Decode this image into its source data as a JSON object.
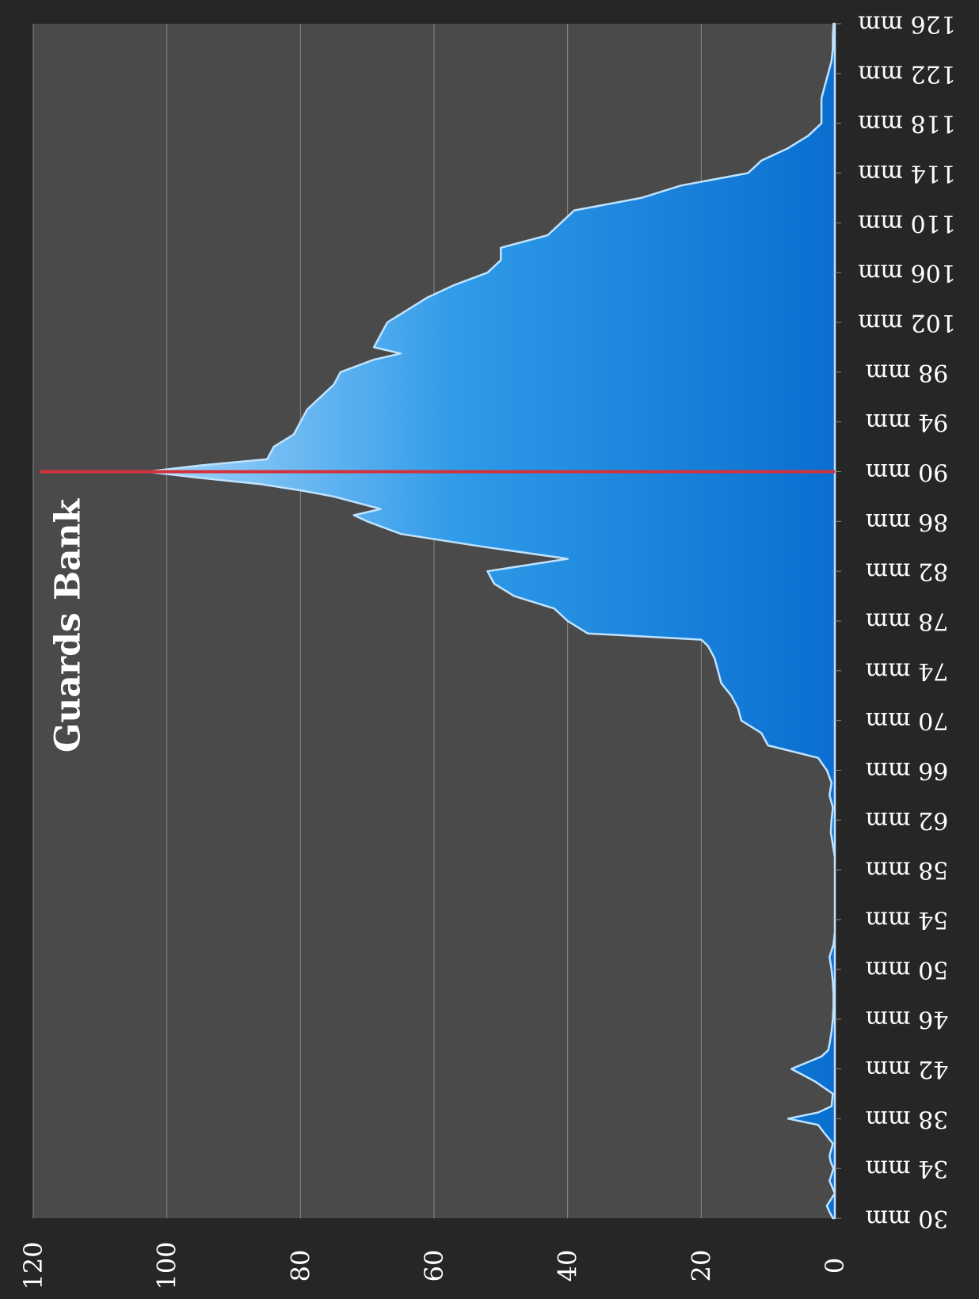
{
  "chart_data": {
    "type": "area",
    "title": "Guards Bank",
    "xlabel": "",
    "ylabel": "",
    "ylim": [
      0,
      120
    ],
    "y_ticks": [
      "0",
      "20",
      "40",
      "60",
      "80",
      "100",
      "120"
    ],
    "x_ticks": [
      "30 mm",
      "34 mm",
      "38 mm",
      "42 mm",
      "46 mm",
      "50 mm",
      "54 mm",
      "58 mm",
      "62 mm",
      "66 mm",
      "70 mm",
      "74 mm",
      "78 mm",
      "82 mm",
      "86 mm",
      "90 mm",
      "94 mm",
      "98 mm",
      "102 mm",
      "106 mm",
      "110 mm",
      "114 mm",
      "118 mm",
      "122 mm",
      "126 mm"
    ],
    "xlim": [
      30,
      126
    ],
    "marker_x": 90,
    "series": [
      {
        "x": [
          30,
          30.5,
          31,
          31.5,
          32,
          33,
          34,
          34.5,
          35,
          36,
          37,
          37.5,
          38,
          38.5,
          39,
          40,
          41,
          42,
          43,
          43.5,
          44,
          45,
          46,
          47,
          48,
          49,
          50,
          51,
          52,
          53,
          54,
          55,
          56,
          57,
          58,
          59,
          60,
          61,
          62,
          63,
          64,
          65,
          66,
          67,
          68,
          69,
          70,
          71,
          72,
          73,
          74,
          75,
          76,
          76.5,
          77,
          78,
          79,
          80,
          81,
          82,
          83,
          84,
          85,
          86,
          86.5,
          87,
          88,
          88.5,
          89,
          89.5,
          90,
          90.5,
          91,
          92,
          93,
          94,
          95,
          96,
          97,
          98,
          99,
          99.5,
          100,
          101,
          102,
          103,
          104,
          105,
          106,
          107,
          108,
          109,
          110,
          111,
          112,
          113,
          114,
          115,
          116,
          117,
          118,
          119,
          120,
          121,
          122,
          123,
          124,
          125,
          126
        ],
        "values": [
          0.3,
          0.8,
          1.2,
          0.6,
          0,
          0.8,
          0.2,
          0.6,
          0.8,
          0.3,
          1.8,
          2.5,
          7,
          2.5,
          0.5,
          0.3,
          3,
          6.5,
          2,
          1,
          0.8,
          0.5,
          0.3,
          0.2,
          0.2,
          0.3,
          0.5,
          0.8,
          0.2,
          0,
          0,
          0,
          0,
          0,
          0,
          0,
          0.3,
          0.6,
          0.5,
          0.3,
          0.8,
          0.5,
          1.2,
          2.5,
          10,
          11,
          14,
          14.5,
          15.5,
          17,
          17.5,
          18,
          19,
          20,
          37,
          40,
          42,
          48,
          51,
          52,
          40,
          53,
          65,
          70,
          72,
          68,
          75,
          80,
          86,
          95,
          103,
          95,
          85,
          84,
          81,
          80,
          79,
          77,
          75,
          74,
          69,
          65,
          69,
          68,
          67,
          64,
          61,
          57,
          52,
          50,
          50,
          43,
          41,
          39,
          29,
          23,
          13,
          11,
          7,
          4,
          2,
          2,
          2,
          1.5,
          1,
          0.5,
          0.3,
          0.3,
          0.2
        ],
        "color": "#1c8ee3"
      }
    ],
    "colors": {
      "plot_bg": "#4a4a4a",
      "frame_bg": "#262626",
      "grid": "#8a8a8a",
      "area_top": "#9fd3fb",
      "area_bottom": "#0a6fd0",
      "area_edge": "#bfe3ff",
      "marker": "#d2323c",
      "text": "#ffffff"
    },
    "grid": true,
    "orientation": "rotated-90-counterclockwise",
    "legend": "none"
  }
}
